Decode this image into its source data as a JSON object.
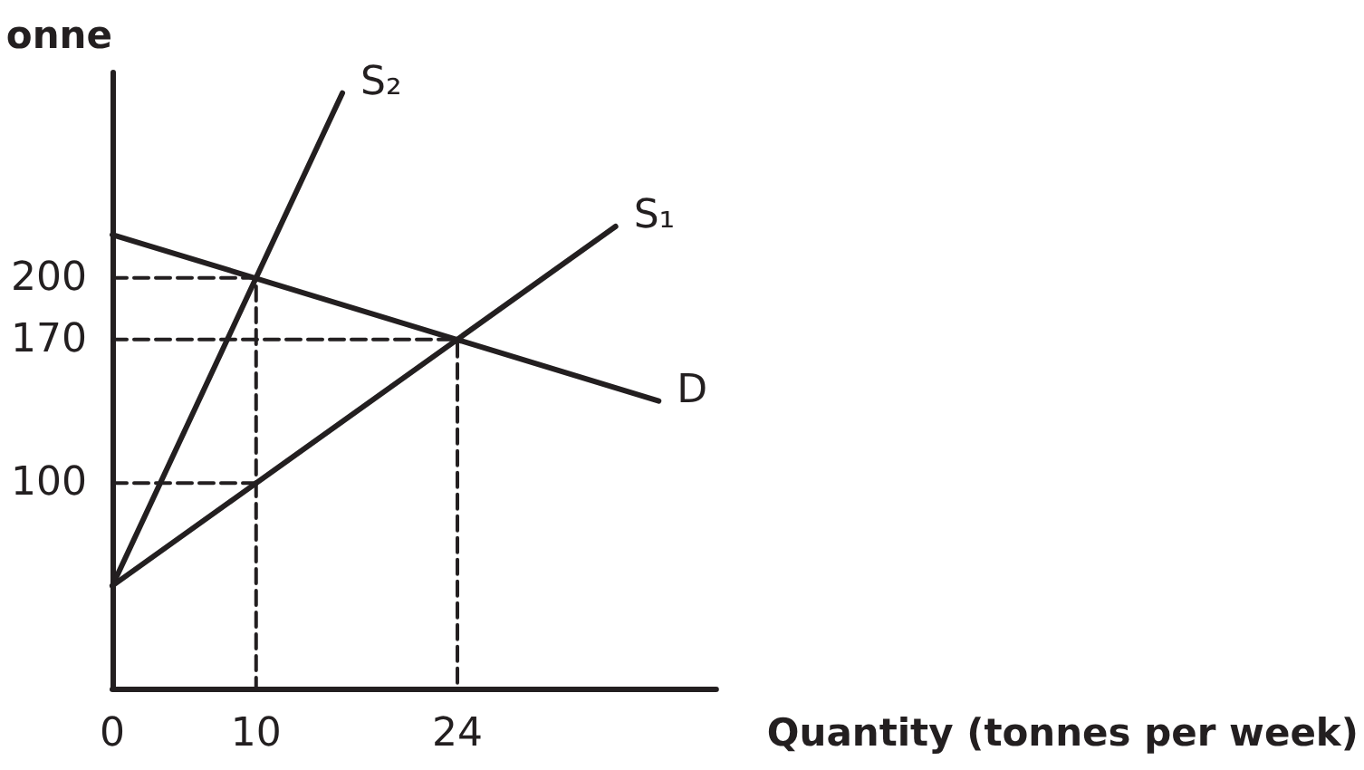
{
  "chart_data": {
    "type": "line",
    "xlabel": "Quantity (tonnes per week)",
    "ylabel": "onne",
    "xlim": [
      0,
      42
    ],
    "ylim": [
      0,
      300
    ],
    "xticks": [
      0,
      10,
      24
    ],
    "yticks": [
      100,
      170,
      200
    ],
    "grid": false,
    "legend": false,
    "marker": "none",
    "series": [
      {
        "name": "S₂",
        "color": "#231f20",
        "x": [
          0,
          16
        ],
        "values": [
          50,
          290
        ]
      },
      {
        "name": "S₁",
        "color": "#231f20",
        "x": [
          0,
          35
        ],
        "values": [
          50,
          225
        ]
      },
      {
        "name": "D",
        "color": "#231f20",
        "x": [
          0,
          38
        ],
        "values": [
          221,
          140
        ]
      },
      {
        "color": "#231f20",
        "line_style": "dashed",
        "x": [
          0,
          10,
          10
        ],
        "values": [
          200,
          200,
          0
        ]
      },
      {
        "color": "#231f20",
        "line_style": "dashed",
        "x": [
          0,
          24,
          24
        ],
        "values": [
          170,
          170,
          0
        ]
      },
      {
        "color": "#231f20",
        "line_style": "dashed",
        "x": [
          0,
          10
        ],
        "values": [
          100,
          100
        ]
      }
    ]
  }
}
